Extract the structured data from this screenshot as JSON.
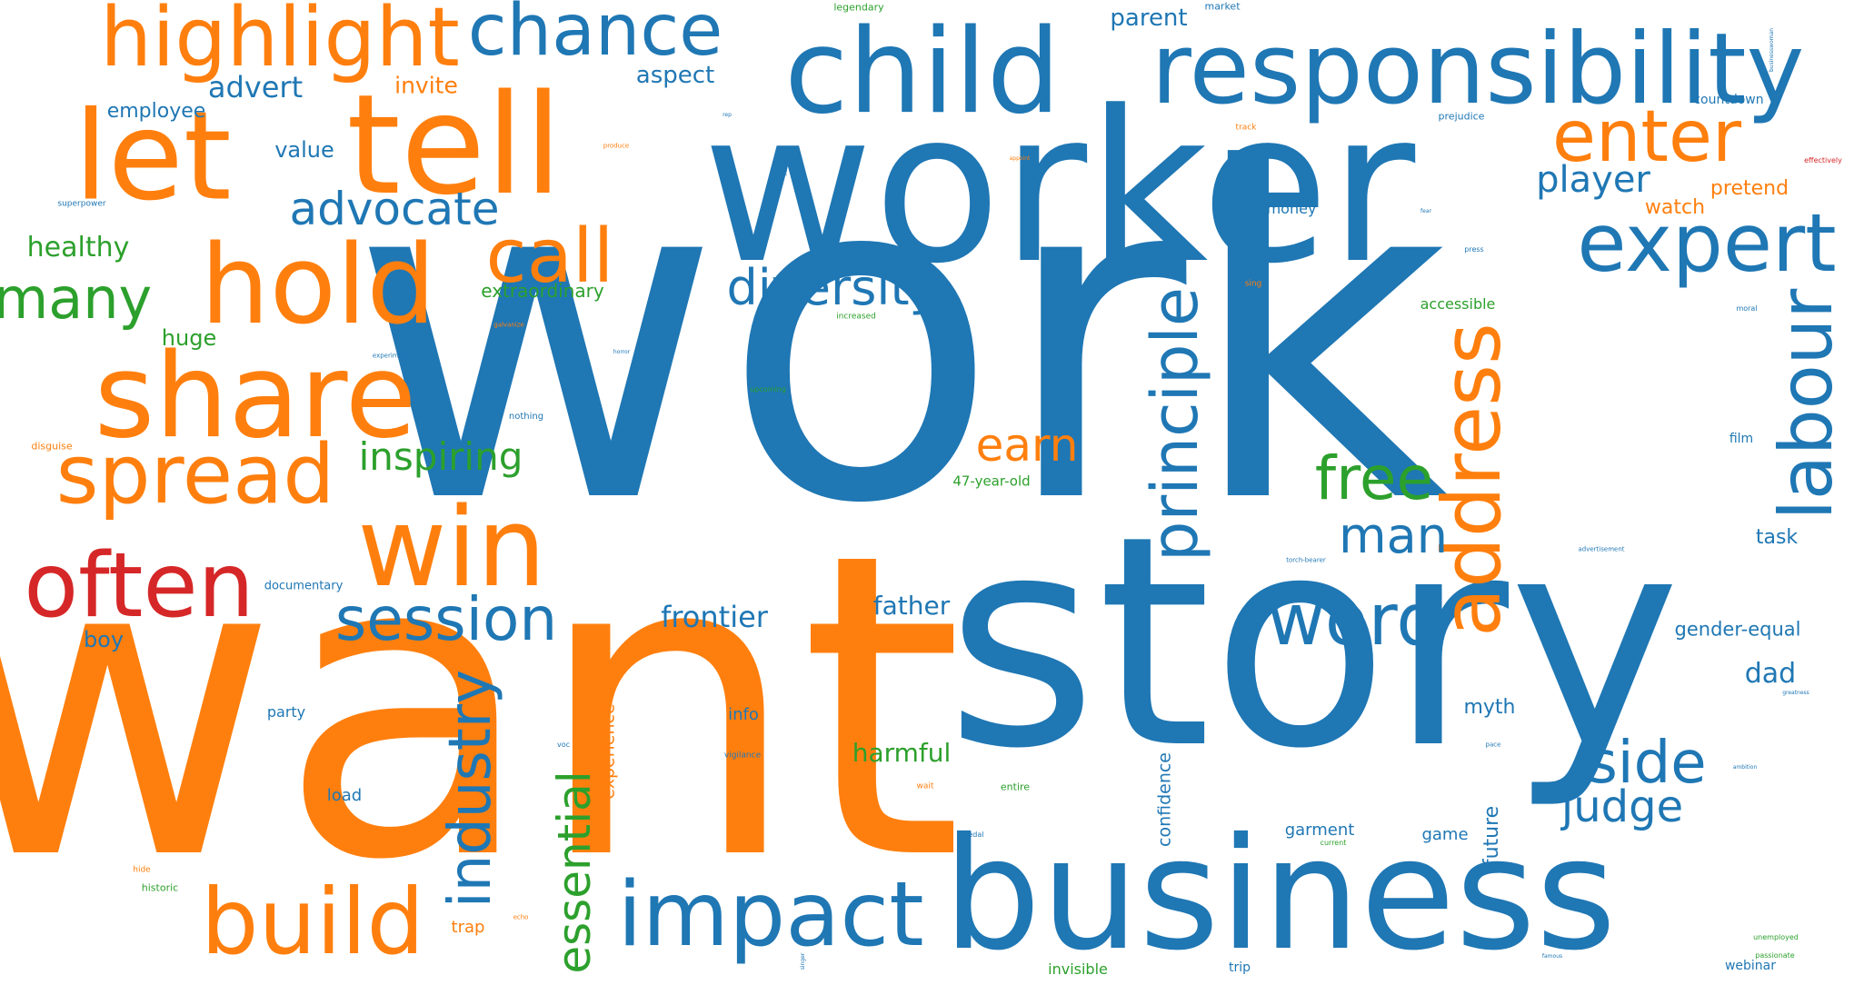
{
  "colors": {
    "blue": "#1f77b4",
    "orange": "#ff7f0e",
    "green": "#2ca02c",
    "red": "#d62728",
    "background": "#ffffff"
  },
  "words": [
    {
      "text": "work",
      "color": "blue"
    },
    {
      "text": "want",
      "color": "orange"
    },
    {
      "text": "story",
      "color": "blue"
    },
    {
      "text": "worker",
      "color": "blue"
    },
    {
      "text": "business",
      "color": "blue"
    },
    {
      "text": "child",
      "color": "blue"
    },
    {
      "text": "responsibility",
      "color": "blue"
    },
    {
      "text": "tell",
      "color": "orange"
    },
    {
      "text": "let",
      "color": "orange"
    },
    {
      "text": "highlight",
      "color": "orange"
    },
    {
      "text": "chance",
      "color": "blue"
    },
    {
      "text": "hold",
      "color": "orange"
    },
    {
      "text": "share",
      "color": "orange"
    },
    {
      "text": "win",
      "color": "orange"
    },
    {
      "text": "spread",
      "color": "orange"
    },
    {
      "text": "often",
      "color": "red"
    },
    {
      "text": "build",
      "color": "orange"
    },
    {
      "text": "impact",
      "color": "blue"
    },
    {
      "text": "expert",
      "color": "blue"
    },
    {
      "text": "enter",
      "color": "orange"
    },
    {
      "text": "call",
      "color": "orange"
    },
    {
      "text": "address",
      "color": "orange"
    },
    {
      "text": "labour",
      "color": "blue"
    },
    {
      "text": "principle",
      "color": "blue"
    },
    {
      "text": "word",
      "color": "blue"
    },
    {
      "text": "session",
      "color": "blue"
    },
    {
      "text": "industry",
      "color": "blue"
    },
    {
      "text": "side",
      "color": "blue"
    },
    {
      "text": "free",
      "color": "green"
    },
    {
      "text": "many",
      "color": "green"
    },
    {
      "text": "diversity",
      "color": "blue"
    },
    {
      "text": "advocate",
      "color": "blue"
    },
    {
      "text": "essential",
      "color": "green"
    },
    {
      "text": "judge",
      "color": "blue"
    },
    {
      "text": "man",
      "color": "blue"
    },
    {
      "text": "earn",
      "color": "orange"
    },
    {
      "text": "inspiring",
      "color": "green"
    },
    {
      "text": "player",
      "color": "blue"
    },
    {
      "text": "frontier",
      "color": "blue"
    },
    {
      "text": "father",
      "color": "blue"
    },
    {
      "text": "harmful",
      "color": "green"
    },
    {
      "text": "dad",
      "color": "blue"
    },
    {
      "text": "advert",
      "color": "blue"
    },
    {
      "text": "aspect",
      "color": "blue"
    },
    {
      "text": "parent",
      "color": "blue"
    },
    {
      "text": "invite",
      "color": "orange"
    },
    {
      "text": "healthy",
      "color": "green"
    },
    {
      "text": "value",
      "color": "blue"
    },
    {
      "text": "employee",
      "color": "blue"
    },
    {
      "text": "huge",
      "color": "green"
    },
    {
      "text": "boy",
      "color": "blue"
    },
    {
      "text": "extraordinary",
      "color": "green"
    },
    {
      "text": "experience",
      "color": "orange"
    },
    {
      "text": "confidence",
      "color": "blue"
    },
    {
      "text": "future",
      "color": "blue"
    },
    {
      "text": "watch",
      "color": "orange"
    },
    {
      "text": "pretend",
      "color": "orange"
    },
    {
      "text": "task",
      "color": "blue"
    },
    {
      "text": "myth",
      "color": "blue"
    },
    {
      "text": "gender-equal",
      "color": "blue"
    },
    {
      "text": "money",
      "color": "blue"
    },
    {
      "text": "accessible",
      "color": "green"
    },
    {
      "text": "garment",
      "color": "blue"
    },
    {
      "text": "game",
      "color": "blue"
    },
    {
      "text": "info",
      "color": "blue"
    },
    {
      "text": "load",
      "color": "blue"
    },
    {
      "text": "party",
      "color": "blue"
    },
    {
      "text": "documentary",
      "color": "blue"
    },
    {
      "text": "47-year-old",
      "color": "green"
    },
    {
      "text": "countdown",
      "color": "blue"
    },
    {
      "text": "film",
      "color": "blue"
    },
    {
      "text": "trap",
      "color": "orange"
    },
    {
      "text": "invisible",
      "color": "green"
    },
    {
      "text": "trip",
      "color": "blue"
    },
    {
      "text": "webinar",
      "color": "blue"
    },
    {
      "text": "historic",
      "color": "green"
    },
    {
      "text": "nothing",
      "color": "blue"
    },
    {
      "text": "disguise",
      "color": "orange"
    },
    {
      "text": "legendary",
      "color": "green"
    },
    {
      "text": "market",
      "color": "blue"
    },
    {
      "text": "prejudice",
      "color": "blue"
    },
    {
      "text": "superpower",
      "color": "blue"
    },
    {
      "text": "entire",
      "color": "green"
    },
    {
      "text": "wait",
      "color": "orange"
    },
    {
      "text": "vigilance",
      "color": "blue"
    },
    {
      "text": "upcoming",
      "color": "green"
    },
    {
      "text": "increased",
      "color": "green"
    },
    {
      "text": "sing",
      "color": "orange"
    },
    {
      "text": "press",
      "color": "blue"
    },
    {
      "text": "moral",
      "color": "blue"
    },
    {
      "text": "effectively",
      "color": "red"
    },
    {
      "text": "passionate",
      "color": "green"
    },
    {
      "text": "unemployed",
      "color": "green"
    },
    {
      "text": "advertisement",
      "color": "blue"
    },
    {
      "text": "torch-bearer",
      "color": "blue"
    },
    {
      "text": "pace",
      "color": "blue"
    },
    {
      "text": "ambition",
      "color": "blue"
    },
    {
      "text": "greatness",
      "color": "blue"
    },
    {
      "text": "hide",
      "color": "orange"
    },
    {
      "text": "echo",
      "color": "orange"
    },
    {
      "text": "experiment",
      "color": "blue"
    },
    {
      "text": "galvanize",
      "color": "orange"
    },
    {
      "text": "fairness",
      "color": "blue"
    },
    {
      "text": "horror",
      "color": "blue"
    },
    {
      "text": "produce",
      "color": "orange"
    },
    {
      "text": "appoint",
      "color": "orange"
    },
    {
      "text": "rep",
      "color": "blue"
    },
    {
      "text": "nursery",
      "color": "blue"
    },
    {
      "text": "track",
      "color": "orange"
    },
    {
      "text": "medal",
      "color": "blue"
    },
    {
      "text": "current",
      "color": "green"
    },
    {
      "text": "voc",
      "color": "blue"
    },
    {
      "text": "famous",
      "color": "blue"
    },
    {
      "text": "businesswoman",
      "color": "blue"
    },
    {
      "text": "singer",
      "color": "blue"
    },
    {
      "text": "fear",
      "color": "blue"
    }
  ]
}
